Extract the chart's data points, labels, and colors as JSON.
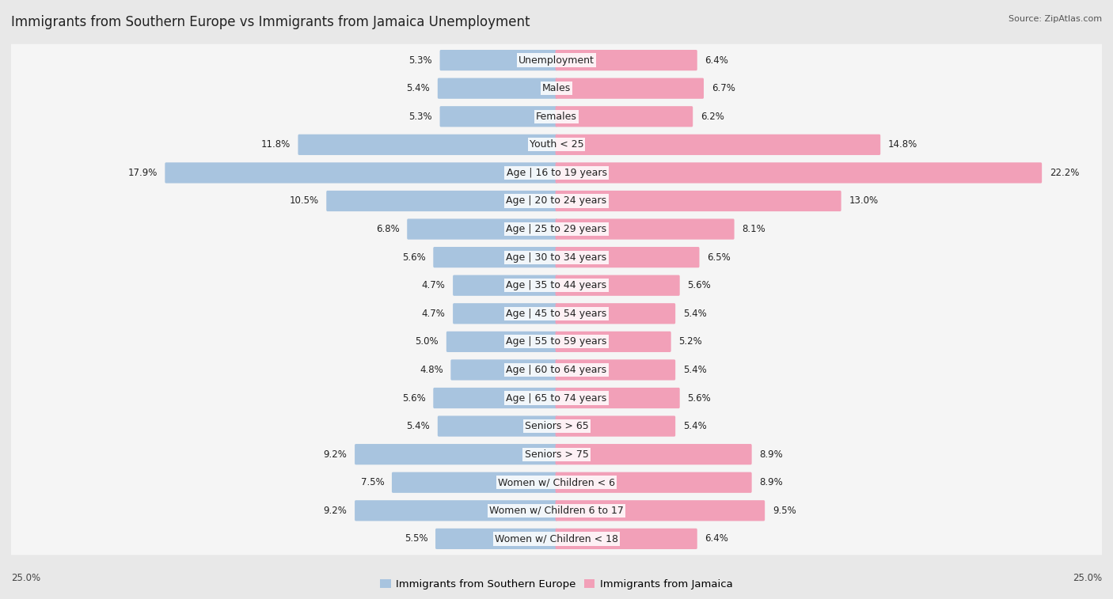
{
  "title": "Immigrants from Southern Europe vs Immigrants from Jamaica Unemployment",
  "source": "Source: ZipAtlas.com",
  "categories": [
    "Unemployment",
    "Males",
    "Females",
    "Youth < 25",
    "Age | 16 to 19 years",
    "Age | 20 to 24 years",
    "Age | 25 to 29 years",
    "Age | 30 to 34 years",
    "Age | 35 to 44 years",
    "Age | 45 to 54 years",
    "Age | 55 to 59 years",
    "Age | 60 to 64 years",
    "Age | 65 to 74 years",
    "Seniors > 65",
    "Seniors > 75",
    "Women w/ Children < 6",
    "Women w/ Children 6 to 17",
    "Women w/ Children < 18"
  ],
  "left_values": [
    5.3,
    5.4,
    5.3,
    11.8,
    17.9,
    10.5,
    6.8,
    5.6,
    4.7,
    4.7,
    5.0,
    4.8,
    5.6,
    5.4,
    9.2,
    7.5,
    9.2,
    5.5
  ],
  "right_values": [
    6.4,
    6.7,
    6.2,
    14.8,
    22.2,
    13.0,
    8.1,
    6.5,
    5.6,
    5.4,
    5.2,
    5.4,
    5.6,
    5.4,
    8.9,
    8.9,
    9.5,
    6.4
  ],
  "left_color": "#a8c4df",
  "right_color": "#f2a0b8",
  "left_label": "Immigrants from Southern Europe",
  "right_label": "Immigrants from Jamaica",
  "axis_max": 25.0,
  "bg_color": "#e8e8e8",
  "row_color": "#f5f5f5",
  "title_fontsize": 12,
  "source_fontsize": 8,
  "cat_fontsize": 9,
  "val_fontsize": 8.5,
  "legend_fontsize": 9.5
}
